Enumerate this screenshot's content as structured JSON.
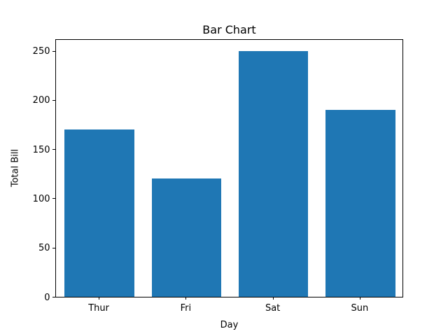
{
  "chart_data": {
    "type": "bar",
    "title": "Bar Chart",
    "xlabel": "Day",
    "ylabel": "Total Bill",
    "categories": [
      "Thur",
      "Fri",
      "Sat",
      "Sun"
    ],
    "values": [
      170,
      120,
      250,
      190
    ],
    "yticks": [
      0,
      50,
      100,
      150,
      200,
      250
    ],
    "ylim": [
      0,
      262.5
    ],
    "bar_color": "#1f77b4",
    "bar_width_fraction": 0.8,
    "grid": false,
    "legend_position": "none",
    "background_color": "#ffffff",
    "axis_color": "#000000"
  }
}
